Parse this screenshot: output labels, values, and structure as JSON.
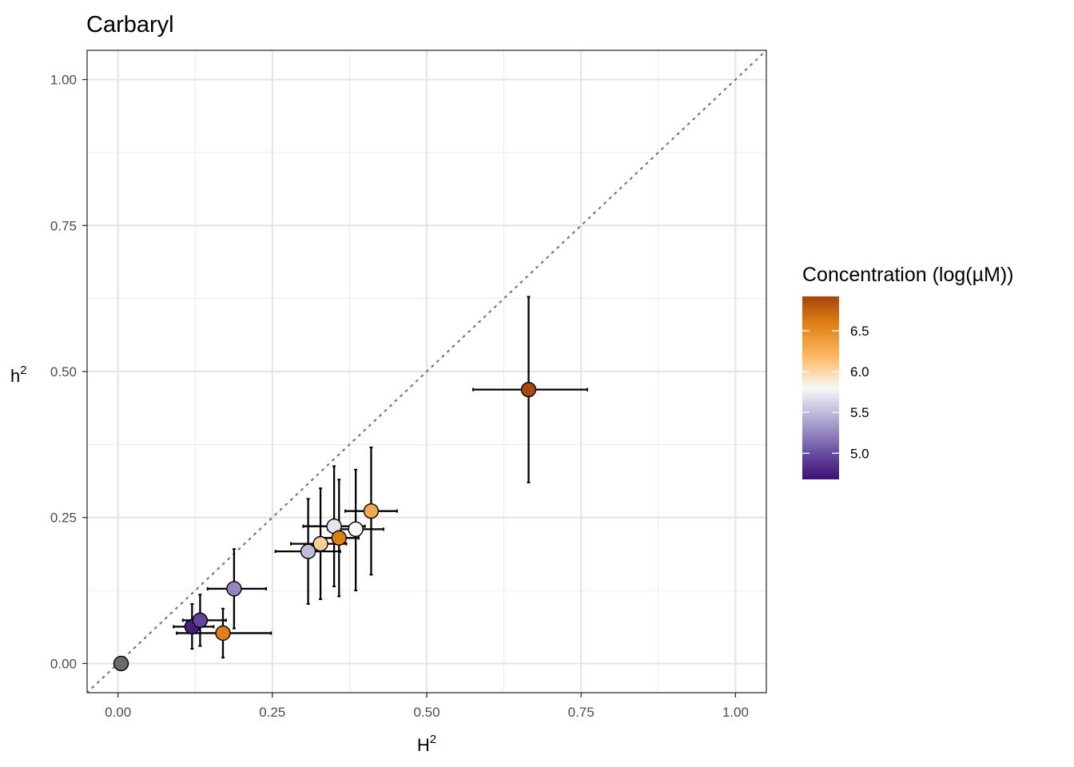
{
  "chart_data": {
    "type": "scatter",
    "title": "Carbaryl",
    "xlabel": "H",
    "ylabel": "h",
    "label_superscript": "2",
    "xlim": [
      -0.05,
      1.05
    ],
    "ylim": [
      -0.05,
      1.05
    ],
    "x_ticks": [
      0.0,
      0.25,
      0.5,
      0.75,
      1.0
    ],
    "y_ticks": [
      0.0,
      0.25,
      0.5,
      0.75,
      1.0
    ],
    "x_tick_labels": [
      "0.00",
      "0.25",
      "0.50",
      "0.75",
      "1.00"
    ],
    "y_tick_labels": [
      "0.00",
      "0.25",
      "0.50",
      "0.75",
      "1.00"
    ],
    "grid": true,
    "reference_line": "y = x (dotted)",
    "colors": {
      "low": "#4b1a80",
      "mid": "#f7f7f7",
      "high": "#a6440d",
      "control": "#6b6b6b",
      "reference_line": "#777777"
    },
    "legend": {
      "title": "Concentration (log(µM))",
      "position": "right",
      "range": [
        4.68,
        6.92
      ],
      "ticks": [
        5.0,
        5.5,
        6.0,
        6.5
      ],
      "tick_labels": [
        "5.0",
        "5.5",
        "6.0",
        "6.5"
      ]
    },
    "points": [
      {
        "x": 0.005,
        "y": 0.0,
        "conc": null
      },
      {
        "x": 0.12,
        "y": 0.063,
        "xerr": [
          0.09,
          0.155
        ],
        "yerr": [
          0.025,
          0.102
        ],
        "conc": 4.75
      },
      {
        "x": 0.133,
        "y": 0.074,
        "xerr": [
          0.105,
          0.175
        ],
        "yerr": [
          0.03,
          0.118
        ],
        "conc": 4.95
      },
      {
        "x": 0.17,
        "y": 0.052,
        "xerr": [
          0.095,
          0.248
        ],
        "yerr": [
          0.01,
          0.094
        ],
        "conc": 6.6
      },
      {
        "x": 0.188,
        "y": 0.128,
        "xerr": [
          0.145,
          0.24
        ],
        "yerr": [
          0.06,
          0.196
        ],
        "conc": 5.25
      },
      {
        "x": 0.308,
        "y": 0.192,
        "xerr": [
          0.255,
          0.36
        ],
        "yerr": [
          0.102,
          0.282
        ],
        "conc": 5.5
      },
      {
        "x": 0.328,
        "y": 0.205,
        "xerr": [
          0.28,
          0.37
        ],
        "yerr": [
          0.11,
          0.3
        ],
        "conc": 6.05
      },
      {
        "x": 0.35,
        "y": 0.235,
        "xerr": [
          0.3,
          0.4
        ],
        "yerr": [
          0.132,
          0.338
        ],
        "conc": 5.7
      },
      {
        "x": 0.358,
        "y": 0.215,
        "xerr": [
          0.33,
          0.39
        ],
        "yerr": [
          0.115,
          0.315
        ],
        "conc": 6.6
      },
      {
        "x": 0.385,
        "y": 0.23,
        "xerr": [
          0.34,
          0.43
        ],
        "yerr": [
          0.125,
          0.332
        ],
        "conc": 5.8
      },
      {
        "x": 0.41,
        "y": 0.261,
        "xerr": [
          0.368,
          0.452
        ],
        "yerr": [
          0.152,
          0.37
        ],
        "conc": 6.3
      },
      {
        "x": 0.665,
        "y": 0.469,
        "xerr": [
          0.575,
          0.76
        ],
        "yerr": [
          0.31,
          0.628
        ],
        "conc": 6.9
      }
    ]
  }
}
